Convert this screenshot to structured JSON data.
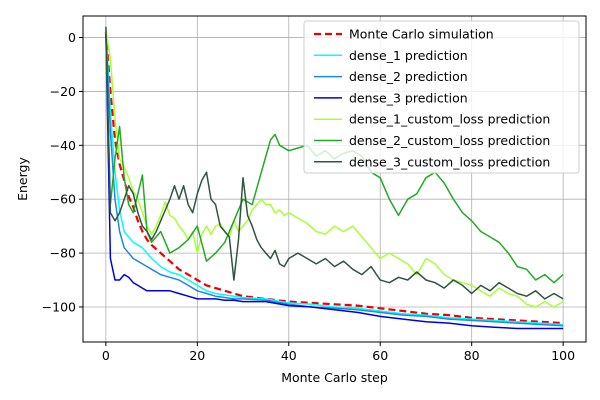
{
  "chart_data": {
    "type": "line",
    "xlabel": "Monte Carlo step",
    "ylabel": "Energy",
    "xlim": [
      -5,
      105
    ],
    "ylim": [
      -113,
      8
    ],
    "xticks": [
      0,
      20,
      40,
      60,
      80,
      100
    ],
    "yticks": [
      0,
      -20,
      -40,
      -60,
      -80,
      -100
    ],
    "grid": true,
    "legend_position": "top-right",
    "series": [
      {
        "name": "Monte Carlo simulation",
        "color": "#ee0000",
        "dashed": true,
        "x": [
          0,
          1,
          2,
          3,
          4,
          5,
          6,
          7,
          8,
          9,
          10,
          12,
          14,
          16,
          18,
          20,
          22,
          24,
          26,
          28,
          30,
          35,
          40,
          45,
          50,
          55,
          60,
          65,
          70,
          75,
          80,
          85,
          90,
          95,
          100
        ],
        "values": [
          2,
          -20,
          -38,
          -47,
          -53,
          -59,
          -63,
          -68,
          -72,
          -75,
          -77,
          -80,
          -83,
          -86,
          -88,
          -90,
          -92,
          -93,
          -94,
          -95,
          -96,
          -97,
          -98,
          -98.5,
          -99,
          -99.5,
          -100.5,
          -101.5,
          -102.5,
          -103,
          -104,
          -104.5,
          -105,
          -105.5,
          -106
        ]
      },
      {
        "name": "dense_1 prediction",
        "color": "#00ffff",
        "dashed": false,
        "x": [
          0,
          1,
          2,
          3,
          4,
          5,
          6,
          7,
          8,
          9,
          10,
          12,
          14,
          16,
          18,
          20,
          22,
          24,
          26,
          28,
          30,
          35,
          40,
          45,
          50,
          55,
          60,
          65,
          70,
          75,
          80,
          85,
          90,
          95,
          100
        ],
        "values": [
          3,
          -28,
          -50,
          -64,
          -72,
          -74,
          -76,
          -77,
          -78,
          -80,
          -82,
          -85,
          -87,
          -88,
          -90,
          -92,
          -94,
          -95,
          -95.5,
          -96,
          -96.5,
          -97,
          -98.5,
          -99,
          -100,
          -100.5,
          -101.5,
          -102.5,
          -103,
          -104,
          -104.5,
          -105,
          -105.5,
          -106,
          -106.5
        ]
      },
      {
        "name": "dense_2 prediction",
        "color": "#1e88e5",
        "dashed": false,
        "x": [
          0,
          1,
          2,
          3,
          4,
          5,
          6,
          7,
          8,
          9,
          10,
          12,
          14,
          16,
          18,
          20,
          22,
          24,
          26,
          28,
          30,
          35,
          40,
          45,
          50,
          55,
          60,
          65,
          70,
          75,
          80,
          85,
          90,
          95,
          100
        ],
        "values": [
          2,
          -35,
          -60,
          -72,
          -78,
          -80,
          -82,
          -83,
          -84,
          -85,
          -86,
          -88,
          -89,
          -90,
          -92,
          -94,
          -95,
          -96,
          -96.5,
          -97,
          -97,
          -97.5,
          -99,
          -100,
          -100.5,
          -101,
          -102,
          -103,
          -103.5,
          -104.5,
          -105,
          -105.5,
          -106,
          -106.5,
          -107
        ]
      },
      {
        "name": "dense_3 prediction",
        "color": "#0000dd",
        "dashed": false,
        "x": [
          0,
          1,
          2,
          3,
          4,
          5,
          6,
          7,
          8,
          9,
          10,
          12,
          14,
          16,
          18,
          20,
          22,
          24,
          26,
          28,
          30,
          35,
          40,
          45,
          50,
          55,
          60,
          65,
          70,
          75,
          80,
          85,
          90,
          95,
          100
        ],
        "values": [
          1,
          -82,
          -90,
          -90,
          -88,
          -89,
          -91,
          -92,
          -93,
          -94,
          -94,
          -94,
          -94,
          -95,
          -96,
          -97,
          -97,
          -97,
          -97.5,
          -97.5,
          -98,
          -98,
          -99.5,
          -100,
          -101,
          -102,
          -103.5,
          -104.5,
          -105.5,
          -106,
          -107,
          -107.5,
          -108,
          -108,
          -108
        ]
      },
      {
        "name": "dense_1_custom_loss prediction",
        "color": "#aaff33",
        "dashed": false,
        "x": [
          0,
          1,
          2,
          3,
          4,
          5,
          6,
          7,
          8,
          9,
          10,
          11,
          12,
          13,
          14,
          15,
          16,
          17,
          18,
          19,
          20,
          21,
          22,
          23,
          24,
          25,
          26,
          27,
          28,
          29,
          30,
          31,
          32,
          33,
          34,
          35,
          36,
          37,
          38,
          39,
          40,
          42,
          44,
          46,
          48,
          50,
          52,
          54,
          56,
          58,
          60,
          62,
          64,
          66,
          68,
          70,
          72,
          74,
          76,
          78,
          80,
          82,
          84,
          86,
          88,
          90,
          92,
          94,
          96,
          98,
          100
        ],
        "values": [
          3,
          -8,
          -30,
          -45,
          -48,
          -52,
          -57,
          -60,
          -65,
          -70,
          -73,
          -70,
          -66,
          -61,
          -66,
          -67,
          -70,
          -72,
          -75,
          -72,
          -80,
          -73,
          -70,
          -73,
          -70,
          -69,
          -72,
          -74,
          -68,
          -72,
          -70,
          -68,
          -64,
          -62,
          -60,
          -62,
          -62,
          -65,
          -64,
          -66,
          -65,
          -67,
          -69,
          -72,
          -73,
          -70,
          -72,
          -70,
          -74,
          -78,
          -82,
          -80,
          -82,
          -84,
          -88,
          -82,
          -84,
          -88,
          -90,
          -91,
          -92,
          -94,
          -96,
          -93,
          -95,
          -96,
          -99,
          -100,
          -98,
          -100,
          -98
        ]
      },
      {
        "name": "dense_2_custom_loss prediction",
        "color": "#22aa22",
        "dashed": false,
        "x": [
          0,
          1,
          2,
          3,
          4,
          5,
          6,
          7,
          8,
          9,
          10,
          12,
          14,
          16,
          18,
          20,
          22,
          24,
          26,
          28,
          30,
          32,
          34,
          36,
          37,
          38,
          40,
          42,
          44,
          46,
          48,
          50,
          52,
          54,
          56,
          58,
          60,
          62,
          64,
          66,
          68,
          70,
          72,
          74,
          76,
          78,
          80,
          82,
          84,
          86,
          88,
          90,
          92,
          94,
          96,
          98,
          100
        ],
        "values": [
          0,
          -62,
          -45,
          -33,
          -52,
          -62,
          -65,
          -58,
          -51,
          -72,
          -76,
          -72,
          -80,
          -78,
          -75,
          -70,
          -83,
          -80,
          -76,
          -68,
          -60,
          -62,
          -50,
          -38,
          -36,
          -40,
          -42,
          -41,
          -40,
          -44,
          -42,
          -45,
          -43,
          -42,
          -44,
          -50,
          -52,
          -60,
          -66,
          -60,
          -58,
          -52,
          -50,
          -54,
          -60,
          -65,
          -68,
          -72,
          -74,
          -76,
          -80,
          -85,
          -86,
          -90,
          -88,
          -91,
          -88
        ]
      },
      {
        "name": "dense_3_custom_loss prediction",
        "color": "#2f5540",
        "dashed": false,
        "x": [
          0,
          1,
          2,
          3,
          4,
          5,
          6,
          7,
          8,
          9,
          10,
          11,
          12,
          13,
          14,
          15,
          16,
          17,
          18,
          19,
          20,
          21,
          22,
          23,
          24,
          25,
          26,
          27,
          28,
          29,
          30,
          31,
          32,
          33,
          34,
          35,
          36,
          37,
          38,
          39,
          40,
          42,
          44,
          46,
          48,
          50,
          52,
          54,
          56,
          58,
          60,
          62,
          64,
          66,
          68,
          70,
          72,
          74,
          76,
          78,
          80,
          82,
          84,
          86,
          88,
          90,
          92,
          94,
          96,
          98,
          100
        ],
        "values": [
          4,
          -65,
          -68,
          -65,
          -60,
          -55,
          -58,
          -65,
          -70,
          -72,
          -75,
          -72,
          -68,
          -64,
          -60,
          -55,
          -60,
          -55,
          -62,
          -65,
          -58,
          -53,
          -50,
          -60,
          -62,
          -70,
          -72,
          -74,
          -90,
          -75,
          -52,
          -66,
          -70,
          -75,
          -78,
          -80,
          -82,
          -79,
          -84,
          -85,
          -82,
          -80,
          -82,
          -84,
          -82,
          -85,
          -83,
          -86,
          -88,
          -85,
          -90,
          -91,
          -89,
          -90,
          -87,
          -90,
          -91,
          -93,
          -90,
          -92,
          -95,
          -92,
          -94,
          -91,
          -93,
          -95,
          -96,
          -94,
          -97,
          -95,
          -97
        ]
      }
    ]
  }
}
